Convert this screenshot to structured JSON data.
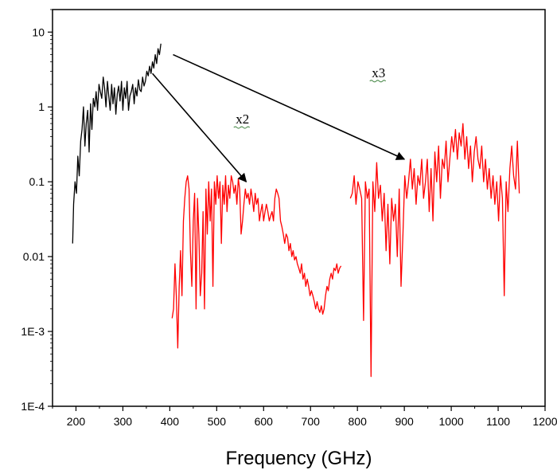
{
  "chart_data": {
    "type": "line",
    "title": "",
    "xlabel": "Frequency (GHz)",
    "ylabel": "",
    "xlim": [
      150,
      1200
    ],
    "ylim": [
      0.0001,
      20
    ],
    "y_scale": "log",
    "grid": false,
    "x_ticks": [
      200,
      300,
      400,
      500,
      600,
      700,
      800,
      900,
      1000,
      1100,
      1200
    ],
    "x_tick_labels": [
      "200",
      "300",
      "400",
      "500",
      "600",
      "700",
      "800",
      "900",
      "1000",
      "1100",
      "1200"
    ],
    "y_ticks": [
      0.0001,
      0.001,
      0.01,
      0.1,
      1,
      10
    ],
    "y_tick_labels": [
      "1E-4",
      "1E-3",
      "0.01",
      "0.1",
      "1",
      "10"
    ],
    "series": [
      {
        "color": "#000000",
        "x": [
          193,
          195,
          198,
          201,
          204,
          207,
          210,
          213,
          216,
          219,
          222,
          225,
          228,
          231,
          234,
          237,
          240,
          243,
          246,
          249,
          252,
          255,
          258,
          261,
          264,
          267,
          270,
          273,
          276,
          279,
          282,
          285,
          288,
          291,
          294,
          297,
          300,
          303,
          306,
          309,
          312,
          315,
          318,
          321,
          324,
          327,
          330,
          333,
          336,
          339,
          342,
          345,
          348,
          351,
          354,
          357,
          360,
          363,
          366,
          369,
          372,
          375,
          378,
          381
        ],
        "y": [
          0.015,
          0.05,
          0.1,
          0.07,
          0.22,
          0.12,
          0.35,
          0.5,
          1.0,
          0.3,
          0.6,
          0.9,
          0.25,
          1.1,
          0.5,
          1.3,
          1.0,
          1.6,
          0.9,
          2.0,
          1.6,
          1.3,
          2.5,
          1.8,
          1.0,
          2.2,
          1.4,
          0.9,
          2.0,
          1.1,
          1.8,
          0.8,
          1.5,
          1.9,
          1.2,
          2.2,
          0.9,
          1.8,
          1.3,
          2.2,
          0.9,
          1.4,
          1.6,
          2.0,
          1.1,
          1.8,
          1.4,
          2.3,
          1.7,
          1.6,
          2.5,
          1.9,
          2.2,
          3.0,
          2.6,
          3.5,
          2.8,
          4.0,
          3.3,
          5.0,
          3.8,
          6.0,
          5.0,
          7.0
        ]
      },
      {
        "color": "#ff0000",
        "x": [
          405,
          408,
          411,
          414,
          417,
          420,
          423,
          426,
          429,
          432,
          435,
          438,
          441,
          444,
          447,
          450,
          453,
          456,
          459,
          462,
          465,
          468,
          471,
          474,
          477,
          480,
          483,
          486,
          489,
          492,
          495,
          498,
          501,
          504,
          507,
          510,
          513,
          516,
          519,
          522,
          525,
          528,
          531,
          534,
          537,
          540,
          543,
          546,
          549,
          552,
          555,
          558,
          561,
          564,
          567,
          570,
          573,
          576,
          579,
          582,
          585,
          588,
          591,
          594,
          597,
          600,
          603,
          606,
          609,
          612,
          615,
          618,
          621,
          624,
          627,
          630,
          633,
          636,
          639,
          642,
          645,
          648,
          651,
          654,
          657,
          660,
          663,
          666,
          669,
          672,
          675,
          678,
          681,
          684,
          687,
          690,
          693,
          696,
          699,
          702,
          705,
          708,
          711,
          714,
          717,
          720,
          723,
          726,
          729,
          732,
          735,
          738,
          741,
          744,
          747,
          750,
          753,
          756,
          759,
          762,
          765
        ],
        "y": [
          0.0015,
          0.002,
          0.008,
          0.003,
          0.0006,
          0.004,
          0.012,
          0.003,
          0.03,
          0.06,
          0.1,
          0.12,
          0.08,
          0.012,
          0.004,
          0.03,
          0.07,
          0.002,
          0.06,
          0.02,
          0.003,
          0.006,
          0.04,
          0.002,
          0.08,
          0.02,
          0.1,
          0.03,
          0.08,
          0.004,
          0.1,
          0.05,
          0.12,
          0.06,
          0.1,
          0.015,
          0.09,
          0.05,
          0.12,
          0.04,
          0.09,
          0.06,
          0.12,
          0.1,
          0.07,
          0.09,
          0.05,
          0.11,
          0.08,
          0.02,
          0.03,
          0.05,
          0.08,
          0.06,
          0.07,
          0.05,
          0.08,
          0.06,
          0.04,
          0.07,
          0.05,
          0.06,
          0.03,
          0.04,
          0.05,
          0.03,
          0.04,
          0.05,
          0.04,
          0.03,
          0.035,
          0.04,
          0.03,
          0.06,
          0.08,
          0.07,
          0.06,
          0.03,
          0.025,
          0.02,
          0.015,
          0.02,
          0.018,
          0.012,
          0.015,
          0.01,
          0.012,
          0.009,
          0.01,
          0.008,
          0.007,
          0.006,
          0.008,
          0.005,
          0.006,
          0.004,
          0.005,
          0.004,
          0.003,
          0.0035,
          0.003,
          0.0025,
          0.002,
          0.0025,
          0.002,
          0.0018,
          0.0022,
          0.0017,
          0.002,
          0.003,
          0.004,
          0.0035,
          0.005,
          0.006,
          0.005,
          0.007,
          0.0065,
          0.008,
          0.006,
          0.007,
          0.0075
        ]
      },
      {
        "color": "#ff0000",
        "x": [
          785,
          789,
          793,
          797,
          801,
          805,
          809,
          813,
          817,
          821,
          825,
          829,
          833,
          837,
          841,
          845,
          849,
          853,
          857,
          861,
          865,
          869,
          873,
          877,
          881,
          885,
          889,
          893,
          897,
          901,
          905,
          909,
          913,
          917,
          921,
          925,
          929,
          933,
          937,
          941,
          945,
          949,
          953,
          957,
          961,
          965,
          969,
          973,
          977,
          981,
          985,
          989,
          993,
          997,
          1001,
          1005,
          1009,
          1013,
          1017,
          1021,
          1025,
          1029,
          1033,
          1037,
          1041,
          1045,
          1049,
          1053,
          1057,
          1061,
          1065,
          1069,
          1073,
          1077,
          1081,
          1085,
          1089,
          1093,
          1097,
          1101,
          1105,
          1109,
          1113,
          1117,
          1121,
          1125,
          1129,
          1133,
          1137,
          1141,
          1145
        ],
        "y": [
          0.06,
          0.07,
          0.12,
          0.05,
          0.1,
          0.08,
          0.06,
          0.0014,
          0.1,
          0.06,
          0.08,
          0.00025,
          0.1,
          0.04,
          0.18,
          0.06,
          0.09,
          0.03,
          0.07,
          0.012,
          0.05,
          0.008,
          0.06,
          0.03,
          0.05,
          0.01,
          0.08,
          0.004,
          0.02,
          0.12,
          0.06,
          0.1,
          0.2,
          0.08,
          0.15,
          0.05,
          0.12,
          0.09,
          0.2,
          0.06,
          0.1,
          0.2,
          0.04,
          0.15,
          0.03,
          0.25,
          0.1,
          0.3,
          0.06,
          0.2,
          0.15,
          0.35,
          0.1,
          0.2,
          0.4,
          0.25,
          0.5,
          0.2,
          0.45,
          0.3,
          0.6,
          0.2,
          0.4,
          0.15,
          0.3,
          0.1,
          0.25,
          0.4,
          0.2,
          0.15,
          0.3,
          0.1,
          0.2,
          0.08,
          0.15,
          0.06,
          0.12,
          0.05,
          0.1,
          0.03,
          0.12,
          0.06,
          0.003,
          0.1,
          0.04,
          0.15,
          0.3,
          0.12,
          0.08,
          0.35,
          0.07
        ]
      }
    ],
    "annotations": [
      {
        "text": "x2",
        "x": 555,
        "y": 0.6
      },
      {
        "text": "x3",
        "x": 845,
        "y": 2.5
      }
    ],
    "arrows": [
      {
        "from": [
          363,
          2.8
        ],
        "to": [
          563,
          0.1
        ]
      },
      {
        "from": [
          407,
          5.0
        ],
        "to": [
          900,
          0.2
        ]
      }
    ]
  }
}
